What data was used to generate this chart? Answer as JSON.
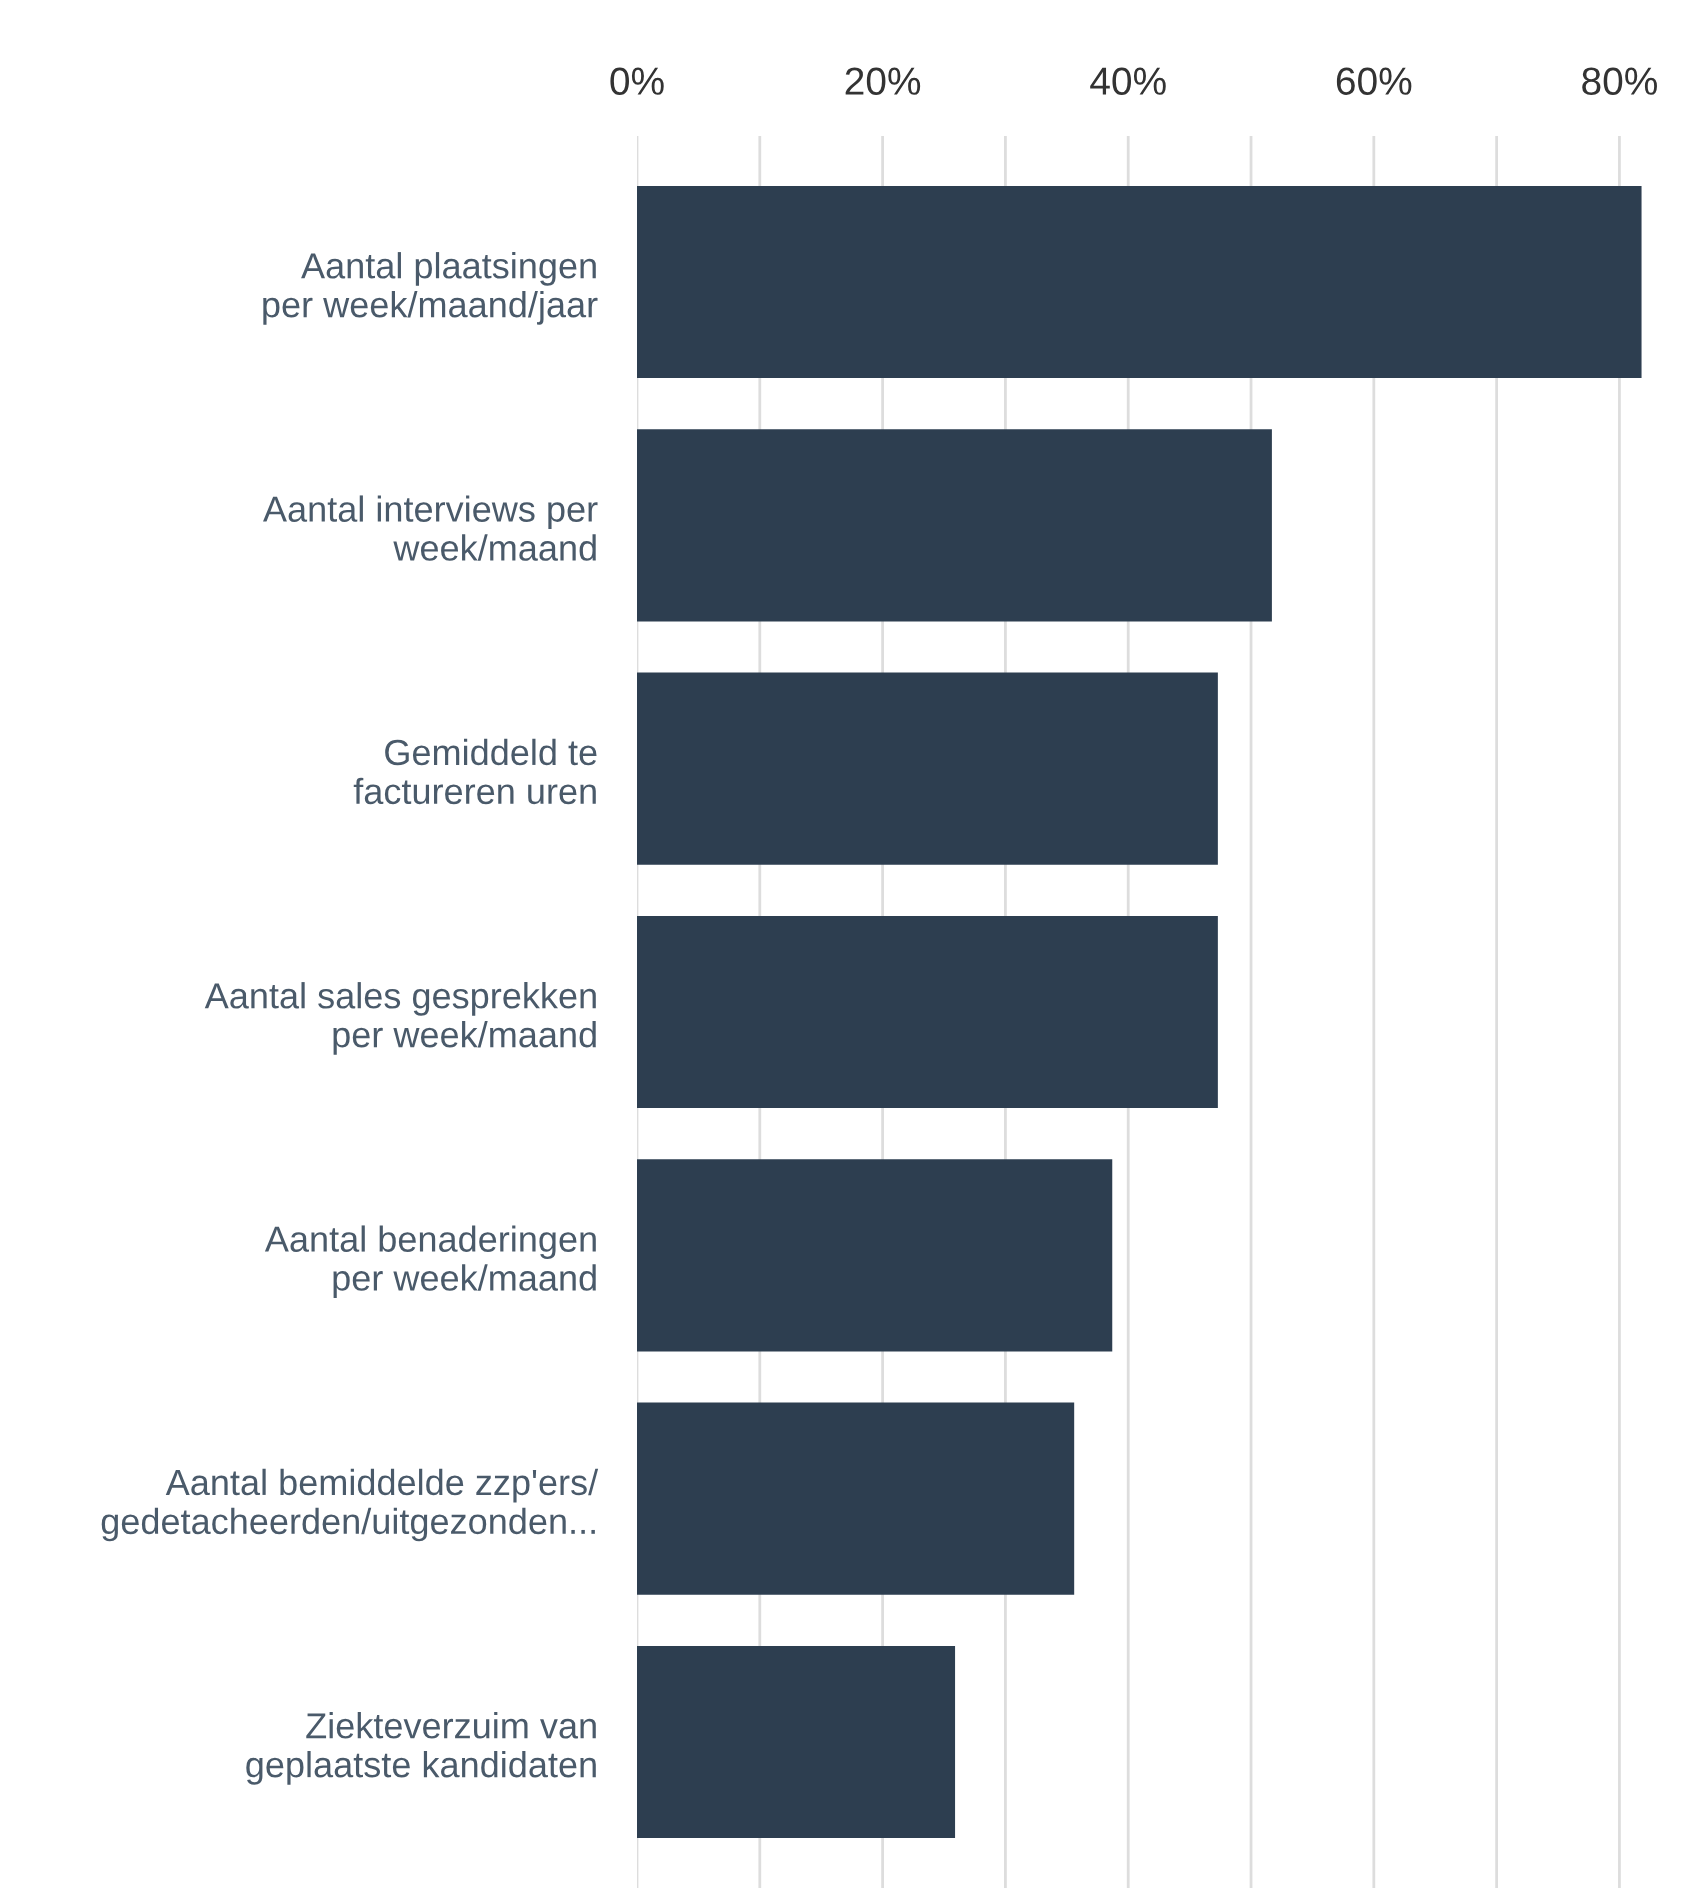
{
  "chart_data": {
    "type": "bar",
    "orientation": "horizontal",
    "categories": [
      "Aantal plaatsingen\nper week/maand/jaar",
      "Aantal interviews per\nweek/maand",
      "Gemiddeld te\nfactureren uren",
      "Aantal sales gesprekken\nper week/maand",
      "Aantal benaderingen\nper week/maand",
      "Aantal bemiddelde zzp'ers/\ngedetacheerden/uitgezonden...",
      "Ziekteverzuim van\ngeplaatste kandidaten"
    ],
    "values": [
      81.8,
      51.7,
      47.3,
      47.3,
      38.7,
      35.6,
      25.9
    ],
    "color": "#2d3e50",
    "xlim": [
      0,
      82
    ],
    "xticks": [
      {
        "value": 0,
        "label": "0%"
      },
      {
        "value": 10,
        "label": null
      },
      {
        "value": 20,
        "label": "20%"
      },
      {
        "value": 30,
        "label": null
      },
      {
        "value": 40,
        "label": "40%"
      },
      {
        "value": 50,
        "label": null
      },
      {
        "value": 60,
        "label": "60%"
      },
      {
        "value": 70,
        "label": null
      },
      {
        "value": 80,
        "label": "80%"
      }
    ],
    "grid": "x"
  }
}
